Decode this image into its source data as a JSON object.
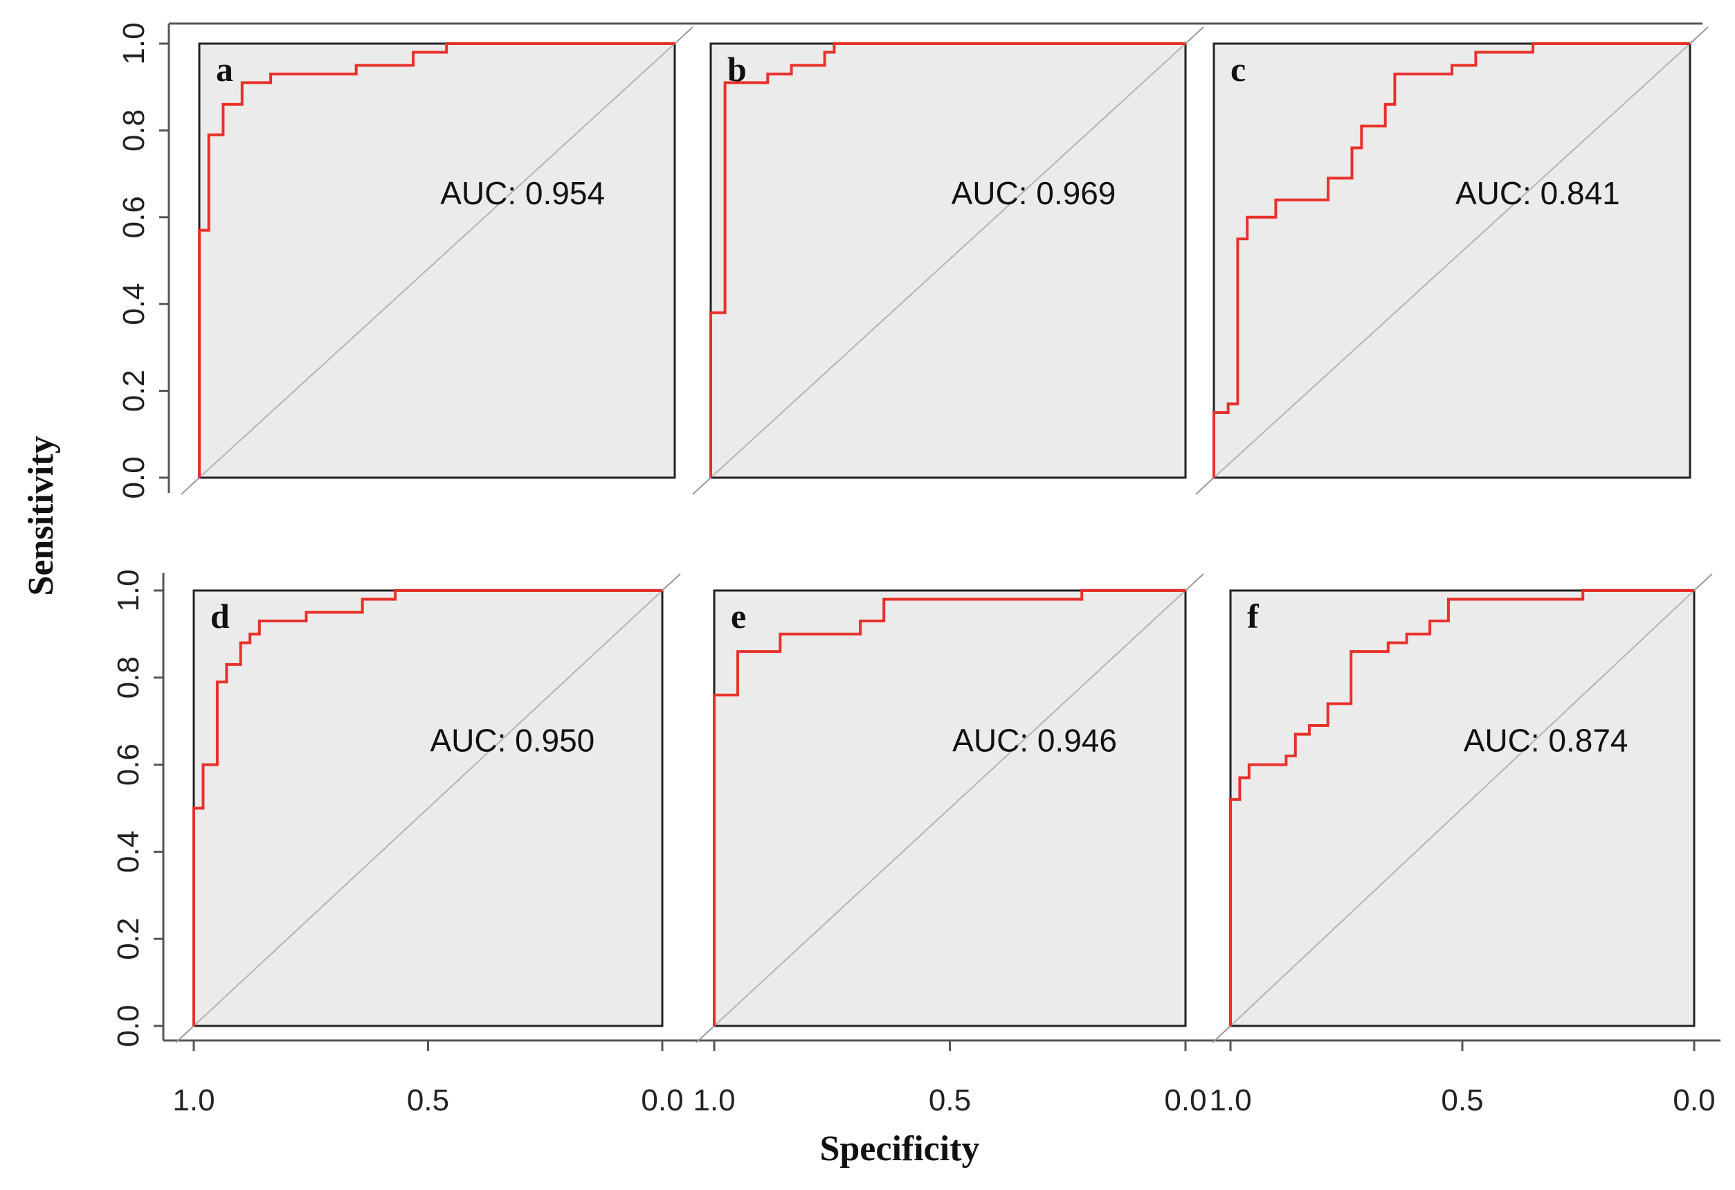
{
  "axes": {
    "ylabel": "Sensitivity",
    "xlabel": "Specificity",
    "y_ticks": [
      "0.0",
      "0.2",
      "0.4",
      "0.6",
      "0.8",
      "1.0"
    ],
    "x_ticks": [
      "1.0",
      "0.5",
      "0.0"
    ]
  },
  "colors": {
    "curve": "#e8302a",
    "panel_fill": "#ebebeb",
    "diagonal": "#b4b4b4"
  },
  "chart_data": [
    {
      "type": "line",
      "panel": "a",
      "auc_label": "AUC: 0.954",
      "xlabel": "Specificity",
      "ylabel": "Sensitivity",
      "xlim": [
        1.0,
        0.0
      ],
      "ylim": [
        0.0,
        1.0
      ],
      "grid": false,
      "series": [
        {
          "points": [
            [
              1.0,
              0.0
            ],
            [
              1.0,
              0.57
            ],
            [
              0.98,
              0.57
            ],
            [
              0.98,
              0.79
            ],
            [
              0.95,
              0.79
            ],
            [
              0.95,
              0.86
            ],
            [
              0.91,
              0.86
            ],
            [
              0.91,
              0.91
            ],
            [
              0.85,
              0.91
            ],
            [
              0.85,
              0.93
            ],
            [
              0.67,
              0.93
            ],
            [
              0.67,
              0.95
            ],
            [
              0.55,
              0.95
            ],
            [
              0.55,
              0.98
            ],
            [
              0.48,
              0.98
            ],
            [
              0.48,
              1.0
            ],
            [
              0.0,
              1.0
            ]
          ]
        }
      ]
    },
    {
      "type": "line",
      "panel": "b",
      "auc_label": "AUC: 0.969",
      "xlabel": "Specificity",
      "ylabel": "Sensitivity",
      "xlim": [
        1.0,
        0.0
      ],
      "ylim": [
        0.0,
        1.0
      ],
      "grid": false,
      "series": [
        {
          "points": [
            [
              1.0,
              0.0
            ],
            [
              1.0,
              0.38
            ],
            [
              0.97,
              0.38
            ],
            [
              0.97,
              0.91
            ],
            [
              0.88,
              0.91
            ],
            [
              0.88,
              0.93
            ],
            [
              0.83,
              0.93
            ],
            [
              0.83,
              0.95
            ],
            [
              0.76,
              0.95
            ],
            [
              0.76,
              0.98
            ],
            [
              0.74,
              0.98
            ],
            [
              0.74,
              1.0
            ],
            [
              0.0,
              1.0
            ]
          ]
        }
      ]
    },
    {
      "type": "line",
      "panel": "c",
      "auc_label": "AUC: 0.841",
      "xlabel": "Specificity",
      "ylabel": "Sensitivity",
      "xlim": [
        1.0,
        0.0
      ],
      "ylim": [
        0.0,
        1.0
      ],
      "grid": false,
      "series": [
        {
          "points": [
            [
              1.0,
              0.0
            ],
            [
              1.0,
              0.15
            ],
            [
              0.97,
              0.15
            ],
            [
              0.97,
              0.17
            ],
            [
              0.95,
              0.17
            ],
            [
              0.95,
              0.55
            ],
            [
              0.93,
              0.55
            ],
            [
              0.93,
              0.6
            ],
            [
              0.87,
              0.6
            ],
            [
              0.87,
              0.64
            ],
            [
              0.76,
              0.64
            ],
            [
              0.76,
              0.69
            ],
            [
              0.71,
              0.69
            ],
            [
              0.71,
              0.76
            ],
            [
              0.69,
              0.76
            ],
            [
              0.69,
              0.81
            ],
            [
              0.64,
              0.81
            ],
            [
              0.64,
              0.86
            ],
            [
              0.62,
              0.86
            ],
            [
              0.62,
              0.93
            ],
            [
              0.5,
              0.93
            ],
            [
              0.5,
              0.95
            ],
            [
              0.45,
              0.95
            ],
            [
              0.45,
              0.98
            ],
            [
              0.33,
              0.98
            ],
            [
              0.33,
              1.0
            ],
            [
              0.0,
              1.0
            ]
          ]
        }
      ]
    },
    {
      "type": "line",
      "panel": "d",
      "auc_label": "AUC: 0.950",
      "xlabel": "Specificity",
      "ylabel": "Sensitivity",
      "xlim": [
        1.0,
        0.0
      ],
      "ylim": [
        0.0,
        1.0
      ],
      "grid": false,
      "series": [
        {
          "points": [
            [
              1.0,
              0.0
            ],
            [
              1.0,
              0.5
            ],
            [
              0.98,
              0.5
            ],
            [
              0.98,
              0.6
            ],
            [
              0.95,
              0.6
            ],
            [
              0.95,
              0.79
            ],
            [
              0.93,
              0.79
            ],
            [
              0.93,
              0.83
            ],
            [
              0.9,
              0.83
            ],
            [
              0.9,
              0.88
            ],
            [
              0.88,
              0.88
            ],
            [
              0.88,
              0.9
            ],
            [
              0.86,
              0.9
            ],
            [
              0.86,
              0.93
            ],
            [
              0.76,
              0.93
            ],
            [
              0.76,
              0.95
            ],
            [
              0.64,
              0.95
            ],
            [
              0.64,
              0.98
            ],
            [
              0.57,
              0.98
            ],
            [
              0.57,
              1.0
            ],
            [
              0.0,
              1.0
            ]
          ]
        }
      ]
    },
    {
      "type": "line",
      "panel": "e",
      "auc_label": "AUC: 0.946",
      "xlabel": "Specificity",
      "ylabel": "Sensitivity",
      "xlim": [
        1.0,
        0.0
      ],
      "ylim": [
        0.0,
        1.0
      ],
      "grid": false,
      "series": [
        {
          "points": [
            [
              1.0,
              0.0
            ],
            [
              1.0,
              0.76
            ],
            [
              0.95,
              0.76
            ],
            [
              0.95,
              0.86
            ],
            [
              0.86,
              0.86
            ],
            [
              0.86,
              0.9
            ],
            [
              0.69,
              0.9
            ],
            [
              0.69,
              0.93
            ],
            [
              0.64,
              0.93
            ],
            [
              0.64,
              0.98
            ],
            [
              0.22,
              0.98
            ],
            [
              0.22,
              1.0
            ],
            [
              0.0,
              1.0
            ]
          ]
        }
      ]
    },
    {
      "type": "line",
      "panel": "f",
      "auc_label": "AUC: 0.874",
      "xlabel": "Specificity",
      "ylabel": "Sensitivity",
      "xlim": [
        1.0,
        0.0
      ],
      "ylim": [
        0.0,
        1.0
      ],
      "grid": false,
      "series": [
        {
          "points": [
            [
              1.0,
              0.0
            ],
            [
              1.0,
              0.52
            ],
            [
              0.98,
              0.52
            ],
            [
              0.98,
              0.57
            ],
            [
              0.96,
              0.57
            ],
            [
              0.96,
              0.6
            ],
            [
              0.88,
              0.6
            ],
            [
              0.88,
              0.62
            ],
            [
              0.86,
              0.62
            ],
            [
              0.86,
              0.67
            ],
            [
              0.83,
              0.67
            ],
            [
              0.83,
              0.69
            ],
            [
              0.79,
              0.69
            ],
            [
              0.79,
              0.74
            ],
            [
              0.74,
              0.74
            ],
            [
              0.74,
              0.86
            ],
            [
              0.66,
              0.86
            ],
            [
              0.66,
              0.88
            ],
            [
              0.62,
              0.88
            ],
            [
              0.62,
              0.9
            ],
            [
              0.57,
              0.9
            ],
            [
              0.57,
              0.93
            ],
            [
              0.53,
              0.93
            ],
            [
              0.53,
              0.98
            ],
            [
              0.24,
              0.98
            ],
            [
              0.24,
              1.0
            ],
            [
              0.0,
              1.0
            ]
          ]
        }
      ]
    }
  ]
}
